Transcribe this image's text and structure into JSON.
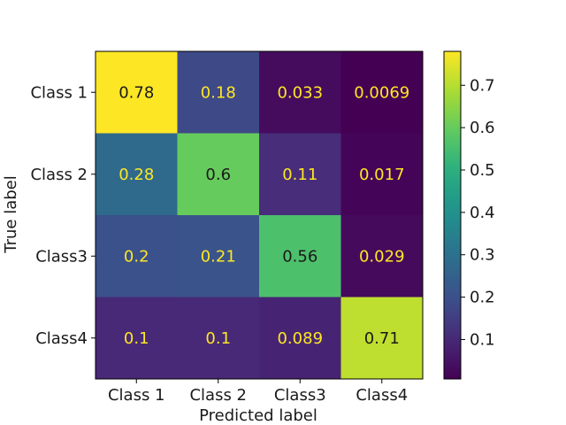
{
  "chart_data": {
    "type": "heatmap",
    "title": "",
    "xlabel": "Predicted label",
    "ylabel": "True label",
    "x_categories": [
      "Class 1",
      "Class 2",
      "Class3",
      "Class4"
    ],
    "y_categories": [
      "Class 1",
      "Class 2",
      "Class3",
      "Class4"
    ],
    "values": [
      [
        0.78,
        0.18,
        0.033,
        0.0069
      ],
      [
        0.28,
        0.6,
        0.11,
        0.017
      ],
      [
        0.2,
        0.21,
        0.56,
        0.029
      ],
      [
        0.1,
        0.1,
        0.089,
        0.71
      ]
    ],
    "cell_labels": [
      [
        "0.78",
        "0.18",
        "0.033",
        "0.0069"
      ],
      [
        "0.28",
        "0.6",
        "0.11",
        "0.017"
      ],
      [
        "0.2",
        "0.21",
        "0.56",
        "0.029"
      ],
      [
        "0.1",
        "0.1",
        "0.089",
        "0.71"
      ]
    ],
    "colormap": "viridis",
    "colorbar": {
      "range": [
        0.0069,
        0.78
      ],
      "ticks": [
        0.1,
        0.2,
        0.3,
        0.4,
        0.5,
        0.6,
        0.7
      ],
      "tick_labels": [
        "0.1",
        "0.2",
        "0.3",
        "0.4",
        "0.5",
        "0.6",
        "0.7"
      ]
    },
    "label_colors": {
      "on_dark": "#fde725",
      "on_light": "#1a1a1a"
    }
  }
}
